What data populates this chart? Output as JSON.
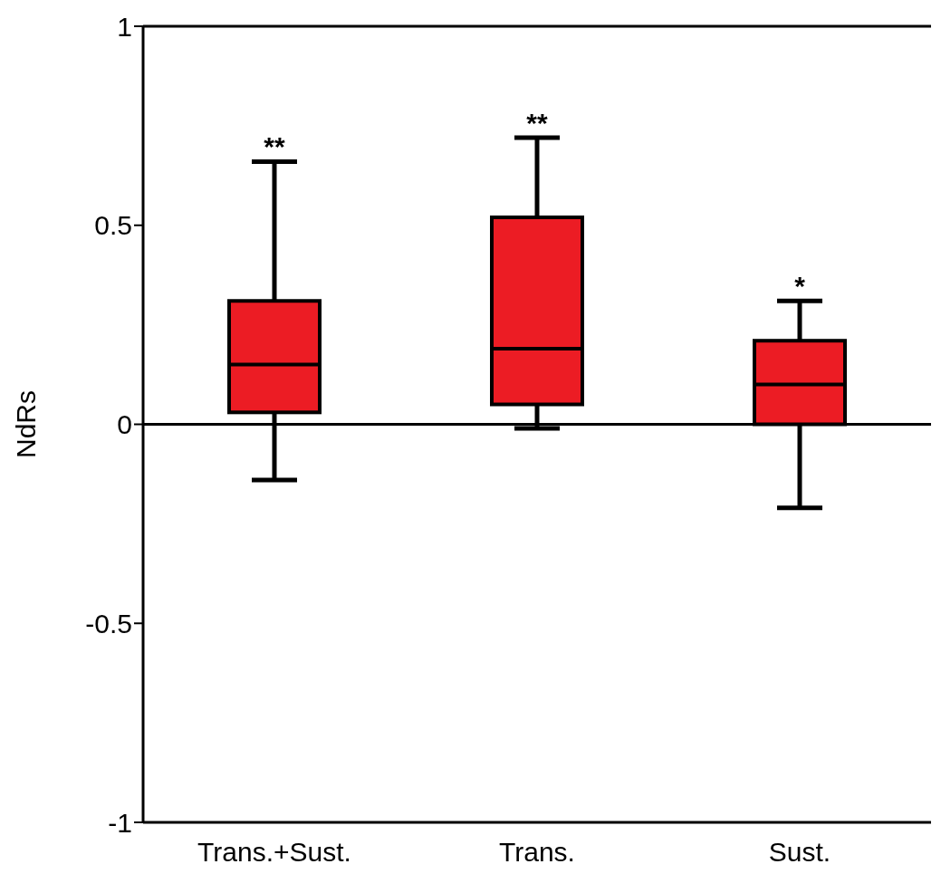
{
  "chart_data": {
    "type": "box",
    "ylabel": "NdRs",
    "categories": [
      "Trans.+Sust.",
      "Trans.",
      "Sust."
    ],
    "boxes": [
      {
        "low": -0.14,
        "q1": 0.03,
        "median": 0.15,
        "q3": 0.31,
        "high": 0.66
      },
      {
        "low": -0.01,
        "q1": 0.05,
        "median": 0.19,
        "q3": 0.52,
        "high": 0.72
      },
      {
        "low": -0.21,
        "q1": 0.0,
        "median": 0.1,
        "q3": 0.21,
        "high": 0.31
      }
    ],
    "color": "#ec1c24",
    "ylim": [
      -1,
      1
    ],
    "yticks": [
      -1,
      -0.5,
      0,
      0.5,
      1
    ],
    "grid": false,
    "legend": false,
    "ref_lines": [
      {
        "axis": "y",
        "value": 0,
        "label": null
      }
    ],
    "annotations": [
      {
        "text": "**",
        "x": "Trans.+Sust.",
        "y": 0.66
      },
      {
        "text": "**",
        "x": "Trans.",
        "y": 0.72
      },
      {
        "text": "*",
        "x": "Sust.",
        "y": 0.31
      }
    ]
  }
}
